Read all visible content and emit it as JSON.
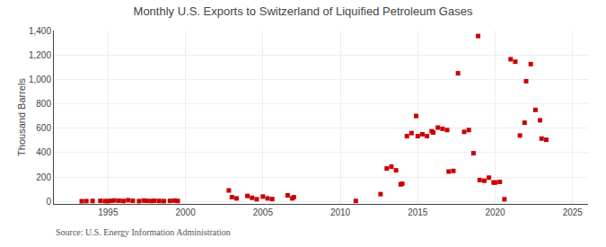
{
  "chart_data": {
    "type": "scatter",
    "title": "Monthly U.S. Exports to Switzerland of Liquified Petroleum Gases",
    "ylabel": "Thousand Barrels",
    "annotations": [
      "Source: U.S. Energy Information Administration"
    ],
    "color": "#cc0000",
    "marker": "square",
    "grid": true,
    "xlim": [
      1991.5,
      2026
    ],
    "ylim": [
      -20,
      1400
    ],
    "xticks": [
      1995,
      2000,
      2005,
      2010,
      2015,
      2020,
      2025
    ],
    "yticks": [
      0,
      200,
      400,
      600,
      800,
      {
        "value": 1000,
        "label": "1,000"
      },
      {
        "value": 1200,
        "label": "1,200"
      },
      {
        "value": 1400,
        "label": "1,400"
      }
    ],
    "x": [
      1993.3,
      1993.6,
      1994.0,
      1994.5,
      1994.8,
      1995.0,
      1995.2,
      1995.4,
      1995.7,
      1996.0,
      1996.3,
      1996.6,
      1997.0,
      1997.3,
      1997.5,
      1997.8,
      1998.0,
      1998.3,
      1998.6,
      1999.0,
      1999.3,
      1999.5,
      2002.8,
      2003.0,
      2003.3,
      2004.0,
      2004.3,
      2004.6,
      2005.0,
      2005.3,
      2005.6,
      2006.6,
      2006.9,
      2007.0,
      2011.0,
      2012.6,
      2013.0,
      2013.3,
      2013.6,
      2013.9,
      2014.0,
      2014.3,
      2014.6,
      2014.9,
      2015.0,
      2015.3,
      2015.6,
      2015.9,
      2016.0,
      2016.3,
      2016.6,
      2016.9,
      2017.0,
      2017.3,
      2017.6,
      2018.0,
      2018.3,
      2018.6,
      2018.9,
      2019.0,
      2019.3,
      2019.6,
      2019.9,
      2020.0,
      2020.3,
      2020.6,
      2021.0,
      2021.3,
      2021.6,
      2021.9,
      2022.0,
      2022.3,
      2022.6,
      2022.9,
      2023.0,
      2023.3
    ],
    "values": [
      2,
      3,
      4,
      5,
      3,
      3,
      5,
      8,
      6,
      4,
      10,
      5,
      3,
      7,
      5,
      4,
      6,
      4,
      3,
      5,
      7,
      4,
      90,
      35,
      25,
      45,
      30,
      18,
      40,
      25,
      20,
      50,
      25,
      35,
      4,
      60,
      270,
      285,
      255,
      140,
      145,
      535,
      560,
      700,
      535,
      550,
      535,
      575,
      565,
      605,
      595,
      585,
      245,
      250,
      1050,
      570,
      585,
      395,
      1355,
      175,
      170,
      195,
      155,
      155,
      160,
      18,
      1165,
      1145,
      540,
      645,
      985,
      1125,
      750,
      665,
      515,
      505
    ]
  }
}
